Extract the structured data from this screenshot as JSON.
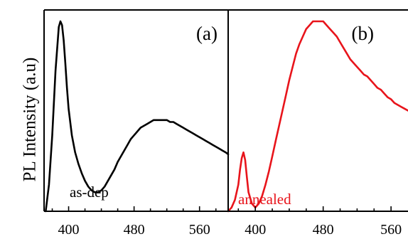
{
  "figure": {
    "ylabel": "PL Intensity (a.u)"
  },
  "chart_data": [
    {
      "type": "line",
      "panel_label": "(a)",
      "annotation": "as-dep",
      "xlabel": "",
      "ylabel": "PL Intensity (a.u)",
      "xlim": [
        370,
        595
      ],
      "ylim": [
        0,
        1.06
      ],
      "xticks": [
        400,
        480,
        560
      ],
      "grid": false,
      "color": "#000000",
      "series": [
        {
          "x": [
            372,
            376,
            380,
            384,
            388,
            390,
            392,
            394,
            396,
            398,
            400,
            404,
            408,
            412,
            416,
            420,
            424,
            428,
            432,
            436,
            440,
            444,
            448,
            452,
            456,
            460,
            464,
            468,
            472,
            476,
            480,
            484,
            488,
            492,
            496,
            500,
            504,
            508,
            512,
            516,
            520,
            524,
            528,
            532,
            536,
            540,
            544,
            548,
            552,
            556,
            560,
            564,
            568,
            572,
            576,
            580,
            584,
            588,
            592,
            595
          ],
          "y": [
            0.0,
            0.14,
            0.4,
            0.74,
            0.97,
            1.0,
            0.98,
            0.9,
            0.78,
            0.65,
            0.54,
            0.4,
            0.31,
            0.25,
            0.2,
            0.16,
            0.13,
            0.11,
            0.1,
            0.1,
            0.11,
            0.13,
            0.16,
            0.19,
            0.22,
            0.26,
            0.29,
            0.32,
            0.35,
            0.38,
            0.4,
            0.42,
            0.44,
            0.45,
            0.46,
            0.47,
            0.48,
            0.48,
            0.48,
            0.48,
            0.48,
            0.47,
            0.47,
            0.46,
            0.45,
            0.44,
            0.43,
            0.42,
            0.41,
            0.4,
            0.39,
            0.38,
            0.37,
            0.36,
            0.35,
            0.34,
            0.33,
            0.32,
            0.31,
            0.3
          ]
        }
      ]
    },
    {
      "type": "line",
      "panel_label": "(b)",
      "annotation": "annealed",
      "xlabel": "",
      "ylabel": "",
      "xlim": [
        368,
        580
      ],
      "ylim": [
        0,
        1.06
      ],
      "xticks": [
        400,
        480,
        560
      ],
      "grid": false,
      "color": "#e8141b",
      "series": [
        {
          "x": [
            368,
            372,
            376,
            380,
            382,
            384,
            386,
            388,
            390,
            392,
            396,
            400,
            404,
            408,
            412,
            416,
            420,
            424,
            428,
            432,
            436,
            440,
            444,
            448,
            452,
            456,
            460,
            464,
            468,
            472,
            476,
            480,
            484,
            488,
            492,
            496,
            500,
            504,
            508,
            512,
            516,
            520,
            524,
            528,
            532,
            536,
            540,
            544,
            548,
            552,
            556,
            560,
            564,
            568,
            572,
            576,
            580
          ],
          "y": [
            0.0,
            0.02,
            0.06,
            0.14,
            0.22,
            0.28,
            0.31,
            0.27,
            0.18,
            0.1,
            0.04,
            0.02,
            0.04,
            0.08,
            0.14,
            0.21,
            0.29,
            0.37,
            0.45,
            0.53,
            0.61,
            0.69,
            0.76,
            0.83,
            0.88,
            0.92,
            0.96,
            0.98,
            1.0,
            1.0,
            1.0,
            1.0,
            0.98,
            0.96,
            0.94,
            0.92,
            0.89,
            0.86,
            0.83,
            0.8,
            0.78,
            0.76,
            0.74,
            0.72,
            0.71,
            0.69,
            0.67,
            0.65,
            0.64,
            0.62,
            0.6,
            0.59,
            0.57,
            0.56,
            0.55,
            0.54,
            0.53
          ]
        }
      ]
    }
  ]
}
